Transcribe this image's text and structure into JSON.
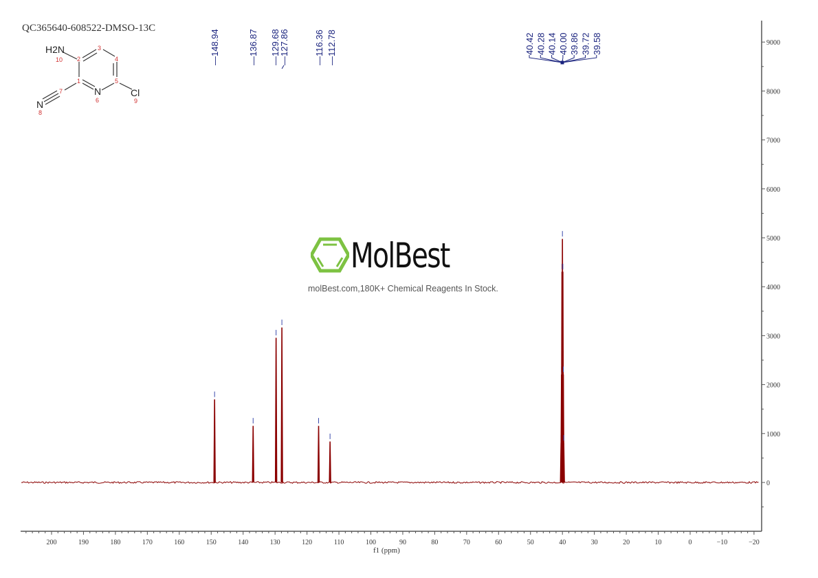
{
  "title": "QC365640-608522-DMSO-13C",
  "structure": {
    "atoms": {
      "nh2": "H2N",
      "n6": "N",
      "n8": "N",
      "cl": "Cl"
    },
    "numbers": [
      "1",
      "2",
      "3",
      "4",
      "5",
      "6",
      "7",
      "8",
      "9",
      "10"
    ]
  },
  "watermark": {
    "brand": "MolBest",
    "tagline": "molBest.com,180K+ Chemical Reagents In Stock.",
    "color": "#7dc242"
  },
  "chart_data": {
    "type": "line",
    "xlabel": "f1 (ppm)",
    "ylabel": "",
    "xlim": [
      209,
      -21
    ],
    "ylim": [
      -950,
      9450
    ],
    "x_ticks": [
      200,
      190,
      180,
      170,
      160,
      150,
      140,
      130,
      120,
      110,
      100,
      90,
      80,
      70,
      60,
      50,
      40,
      30,
      20,
      10,
      0,
      -10,
      -20
    ],
    "y_ticks": [
      0,
      1000,
      2000,
      3000,
      4000,
      5000,
      6000,
      7000,
      8000,
      9000
    ],
    "line_color": "#8b0000",
    "label_color": "#1a237e",
    "peak_labels": [
      "148.94",
      "136.87",
      "129.68",
      "127.86",
      "116.36",
      "112.78",
      "40.42",
      "40.28",
      "40.14",
      "40.00",
      "39.86",
      "39.72",
      "39.58"
    ],
    "peaks": [
      {
        "ppm": 148.94,
        "intensity": 1690
      },
      {
        "ppm": 136.87,
        "intensity": 1150
      },
      {
        "ppm": 129.68,
        "intensity": 2950
      },
      {
        "ppm": 127.86,
        "intensity": 3160
      },
      {
        "ppm": 116.36,
        "intensity": 1150
      },
      {
        "ppm": 112.78,
        "intensity": 830
      },
      {
        "ppm": 40.42,
        "intensity": 800
      },
      {
        "ppm": 40.28,
        "intensity": 2200
      },
      {
        "ppm": 40.14,
        "intensity": 4300
      },
      {
        "ppm": 40.0,
        "intensity": 4970
      },
      {
        "ppm": 39.86,
        "intensity": 4300
      },
      {
        "ppm": 39.72,
        "intensity": 2200
      },
      {
        "ppm": 39.58,
        "intensity": 800
      }
    ]
  }
}
